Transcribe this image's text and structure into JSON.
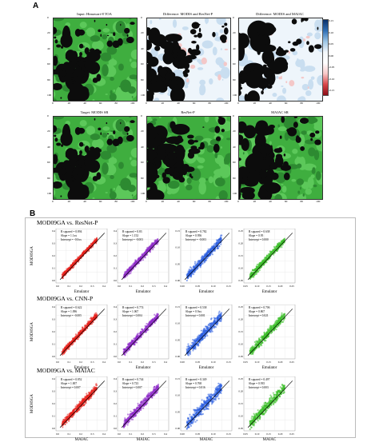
{
  "panelA": {
    "letter": "A",
    "maps": [
      {
        "title": "Input: Himawari-8 TOA",
        "kind": "green"
      },
      {
        "title": "Difference: MODIS and ResNet-P",
        "kind": "diff"
      },
      {
        "title": "Difference: MODIS and MAIAC",
        "kind": "diff"
      },
      {
        "title": "Target: MODIS SR",
        "kind": "green"
      },
      {
        "title": "ResNet-P",
        "kind": "green"
      },
      {
        "title": "MAIAC SR",
        "kind": "green"
      }
    ],
    "y_ticks": [
      "0",
      "20",
      "40",
      "60",
      "80",
      "100"
    ],
    "x_ticks": [
      "0",
      "20",
      "40",
      "60",
      "80",
      "100"
    ],
    "colorbar_ticks": [
      "0.15",
      "0.10",
      "0.05",
      "0.00",
      "-0.05",
      "-0.10",
      "-0.15"
    ],
    "colors": {
      "diff_pos": "#2a5db0",
      "diff_neg": "#c0202a",
      "green": "#3fae3f",
      "dark": "#0c0c0c"
    }
  },
  "panelB": {
    "letter": "B",
    "rows": [
      {
        "title": "MOD09GA vs. ResNet-P",
        "ylabel": "MOD09GA",
        "xlabel": "Emulator",
        "panels": [
          {
            "r2": "R squared = 0.894",
            "slope": "Slope = 1.1xx",
            "intercept": "Intercept = -0.0xx",
            "color": "#e8201c"
          },
          {
            "r2": "R squared = 0.83",
            "slope": "Slope = 1.152",
            "intercept": "Intercept = -0.003",
            "color": "#8e2bc9"
          },
          {
            "r2": "R squared = 0.782",
            "slope": "Slope = 0.956",
            "intercept": "Intercept = -0.003",
            "color": "#2c5fe0"
          },
          {
            "r2": "R squared = 0.638",
            "slope": "Slope = 0.95",
            "intercept": "Intercept = 0.000",
            "color": "#3cbf2a"
          }
        ]
      },
      {
        "title": "MOD09GA vs. CNN-P",
        "ylabel": "MOD09GA",
        "xlabel": "Emulator",
        "panels": [
          {
            "r2": "R squared = 0.622",
            "slope": "Slope = 1.096",
            "intercept": "Intercept = -0.005",
            "color": "#e8201c"
          },
          {
            "r2": "R squared = 0.774",
            "slope": "Slope = 1.067",
            "intercept": "Intercept = 0.004",
            "color": "#8e2bc9"
          },
          {
            "r2": "R squared = 0.538",
            "slope": "Slope = 0.9xx",
            "intercept": "Intercept = 0.001",
            "color": "#2c5fe0"
          },
          {
            "r2": "R squared = 0.706",
            "slope": "Slope = 0.867",
            "intercept": "Intercept = 0.021",
            "color": "#3cbf2a"
          }
        ]
      },
      {
        "title": "MOD09GA vs. MAIAC",
        "ylabel": "MOD09GA",
        "xlabel": "MAIAC",
        "panels": [
          {
            "r2": "R squared = 0.852",
            "slope": "Slope = 1.007",
            "intercept": "Intercept = 0.007",
            "color": "#e8201c"
          },
          {
            "r2": "R squared = 0.744",
            "slope": "Slope = 0.723",
            "intercept": "Intercept = 0.007",
            "color": "#8e2bc9"
          },
          {
            "r2": "R squared = 0.349",
            "slope": "Slope = 0.768",
            "intercept": "Intercept = 0.016",
            "color": "#2c5fe0"
          },
          {
            "r2": "R squared = 0.497",
            "slope": "Slope = 0.935",
            "intercept": "Intercept = 0.003",
            "color": "#3cbf2a"
          }
        ]
      }
    ],
    "x_ticks_by_col": [
      [
        "0.0",
        "0.1",
        "0.2",
        "0.3",
        "0.4"
      ],
      [
        "0.0",
        "0.1",
        "0.2",
        "0.3",
        "0.4"
      ],
      [
        "0.00",
        "0.05",
        "0.10",
        "0.15"
      ],
      [
        "0.05",
        "0.10",
        "0.15",
        "0.20",
        "0.25"
      ]
    ],
    "y_ticks_by_col": [
      [
        "0.0",
        "0.1",
        "0.2",
        "0.3",
        "0.4"
      ],
      [
        "0.0",
        "0.1",
        "0.2",
        "0.3",
        "0.4"
      ],
      [
        "0.00",
        "0.05",
        "0.10",
        "0.15"
      ],
      [
        "0.05",
        "0.10",
        "0.15",
        "0.20",
        "0.25"
      ]
    ]
  }
}
